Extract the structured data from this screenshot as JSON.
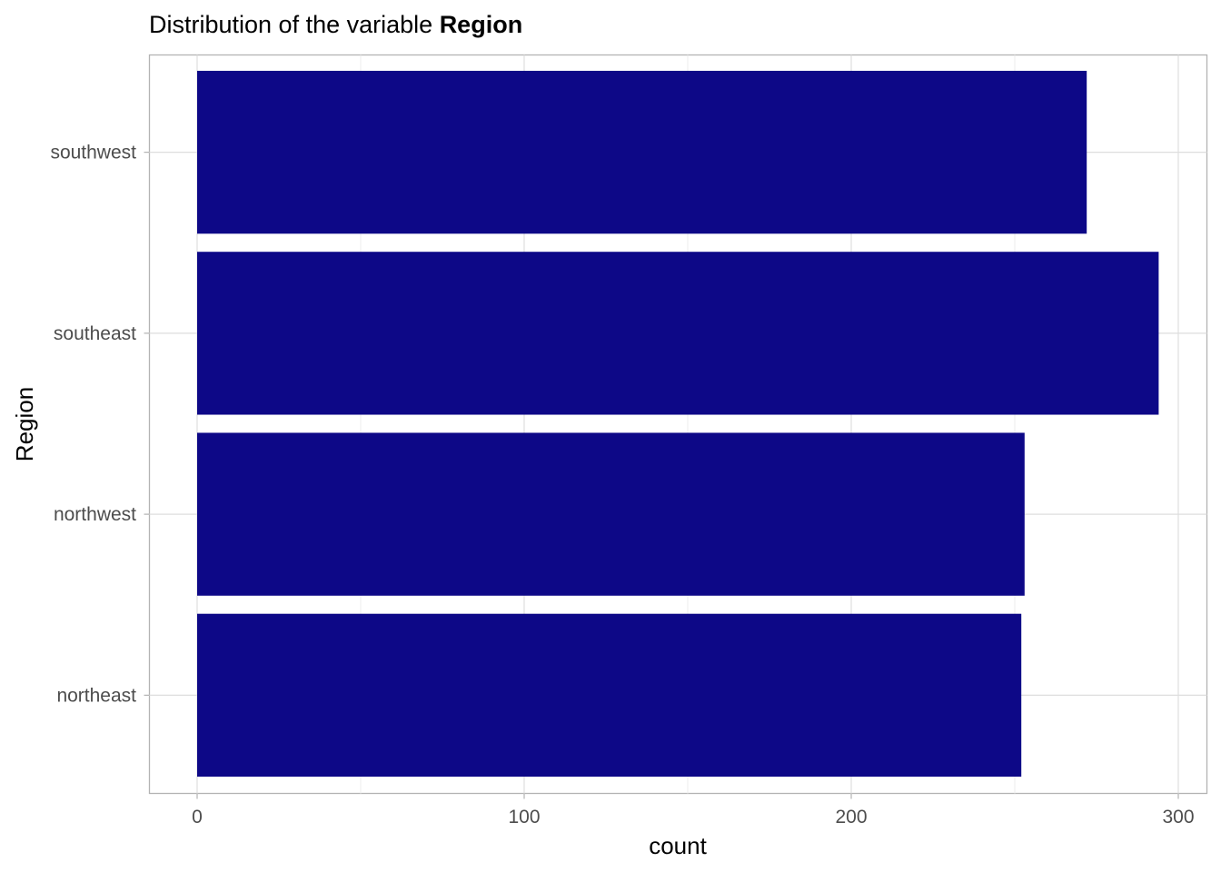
{
  "chart_data": {
    "type": "bar",
    "orientation": "horizontal",
    "title_prefix": "Distribution of the variable",
    "title_bold": "Region",
    "xlabel": "count",
    "ylabel": "Region",
    "categories": [
      "northeast",
      "northwest",
      "southeast",
      "southwest"
    ],
    "values": [
      252,
      253,
      294,
      272
    ],
    "xlim": [
      0,
      310
    ],
    "x_ticks": [
      0,
      100,
      200,
      300
    ],
    "grid": true,
    "bar_color": "#0d0887"
  }
}
